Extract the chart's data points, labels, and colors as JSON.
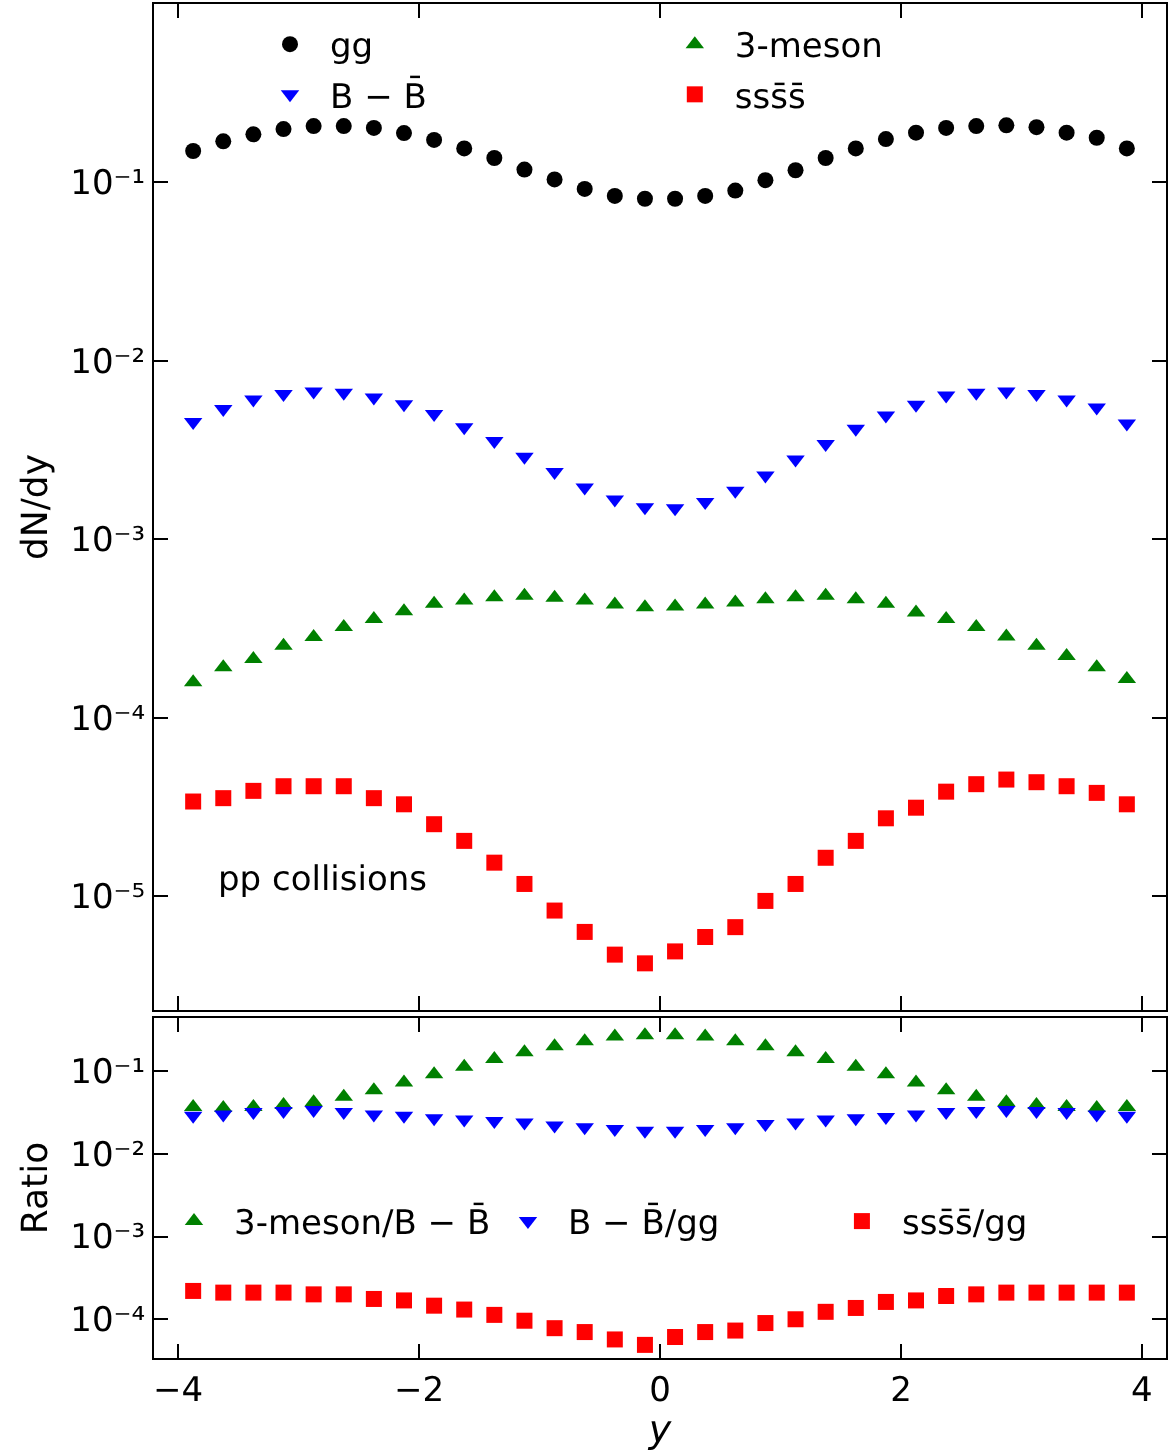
{
  "chart_data": [
    {
      "type": "scatter",
      "ylabel": "dN/dy",
      "log": true,
      "grid": false,
      "legend": "top",
      "tick_labels": "y",
      "x": [
        -3.875,
        -3.625,
        -3.375,
        -3.125,
        -2.875,
        -2.625,
        -2.375,
        -2.125,
        -1.875,
        -1.625,
        -1.375,
        -1.125,
        -0.875,
        -0.625,
        -0.375,
        -0.125,
        0.125,
        0.375,
        0.625,
        0.875,
        1.125,
        1.375,
        1.625,
        1.875,
        2.125,
        2.375,
        2.625,
        2.875,
        3.125,
        3.375,
        3.625,
        3.875
      ],
      "xlim": [
        -4.2,
        4.2
      ],
      "xticks": [
        -4,
        -2,
        0,
        2,
        4
      ],
      "ylim": [
        2.3e-06,
        1.0
      ],
      "yticks": [
        {
          "value": 1e-05,
          "label": "10⁻⁵"
        },
        {
          "value": 0.0001,
          "label": "10⁻⁴"
        },
        {
          "value": 0.001,
          "label": "10⁻³"
        },
        {
          "value": 0.01,
          "label": "10⁻²"
        },
        {
          "value": 0.1,
          "label": "10⁻¹"
        }
      ],
      "annotations": [
        "pp collisions"
      ],
      "series": [
        {
          "name": "gg",
          "color": "#000000",
          "marker": "circle",
          "values": [
            0.15,
            0.17,
            0.186,
            0.199,
            0.207,
            0.207,
            0.202,
            0.189,
            0.173,
            0.155,
            0.137,
            0.118,
            0.104,
            0.092,
            0.084,
            0.081,
            0.081,
            0.084,
            0.09,
            0.103,
            0.117,
            0.137,
            0.155,
            0.175,
            0.19,
            0.202,
            0.207,
            0.209,
            0.204,
            0.19,
            0.178,
            0.155
          ]
        },
        {
          "name": "3-meson",
          "color": "#008000",
          "marker": "triangle",
          "values": [
            0.000158,
            0.000192,
            0.000213,
            0.000253,
            0.000283,
            0.000322,
            0.000357,
            0.000395,
            0.000435,
            0.000454,
            0.000473,
            0.000482,
            0.00047,
            0.000454,
            0.000431,
            0.000416,
            0.00042,
            0.000431,
            0.000442,
            0.000461,
            0.000473,
            0.000482,
            0.000461,
            0.000435,
            0.000389,
            0.000357,
            0.000322,
            0.000285,
            0.000253,
            0.000222,
            0.000192,
            0.000165
          ]
        },
        {
          "name": "B − B̄",
          "color": "#0000ff",
          "marker": "triangle-down",
          "values": [
            0.00454,
            0.00538,
            0.00608,
            0.00651,
            0.00673,
            0.00663,
            0.00624,
            0.00572,
            0.00503,
            0.00424,
            0.00356,
            0.0029,
            0.00238,
            0.00195,
            0.00167,
            0.00151,
            0.00149,
            0.00162,
            0.00187,
            0.00228,
            0.0028,
            0.00342,
            0.00416,
            0.00494,
            0.00567,
            0.0064,
            0.00663,
            0.00673,
            0.00651,
            0.00608,
            0.00548,
            0.00446
          ]
        },
        {
          "name": "sss̄s̄",
          "color": "#ff0000",
          "marker": "square",
          "values": [
            3.39e-05,
            3.54e-05,
            3.89e-05,
            4.13e-05,
            4.13e-05,
            4.13e-05,
            3.54e-05,
            3.27e-05,
            2.53e-05,
            2.04e-05,
            1.54e-05,
            1.17e-05,
            8.3e-06,
            6.3e-06,
            4.7e-06,
            4.2e-06,
            4.9e-06,
            5.9e-06,
            6.7e-06,
            9.4e-06,
            1.17e-05,
            1.64e-05,
            2.04e-05,
            2.73e-05,
            3.13e-05,
            3.85e-05,
            4.24e-05,
            4.5e-05,
            4.35e-05,
            4.13e-05,
            3.79e-05,
            3.27e-05
          ]
        }
      ]
    },
    {
      "type": "scatter",
      "xlabel": "y",
      "ylabel": "Ratio",
      "log": true,
      "grid": false,
      "legend": "center",
      "x": [
        -3.875,
        -3.625,
        -3.375,
        -3.125,
        -2.875,
        -2.625,
        -2.375,
        -2.125,
        -1.875,
        -1.625,
        -1.375,
        -1.125,
        -0.875,
        -0.625,
        -0.375,
        -0.125,
        0.125,
        0.375,
        0.625,
        0.875,
        1.125,
        1.375,
        1.625,
        1.875,
        2.125,
        2.375,
        2.625,
        2.875,
        3.125,
        3.375,
        3.625,
        3.875
      ],
      "xlim": [
        -4.2,
        4.2
      ],
      "xticks": [
        {
          "value": -4,
          "label": "−4"
        },
        {
          "value": -2,
          "label": "−2"
        },
        0,
        2,
        4
      ],
      "ylim": [
        3.4e-05,
        0.44
      ],
      "yticks": [
        {
          "value": 0.0001,
          "label": "10⁻⁴"
        },
        {
          "value": 0.001,
          "label": "10⁻³"
        },
        {
          "value": 0.01,
          "label": "10⁻²"
        },
        {
          "value": 0.1,
          "label": "10⁻¹"
        }
      ],
      "series": [
        {
          "name": "3-meson/B − B̄",
          "color": "#008000",
          "marker": "triangle",
          "values": [
            0.037,
            0.036,
            0.037,
            0.039,
            0.042,
            0.049,
            0.059,
            0.073,
            0.092,
            0.113,
            0.14,
            0.169,
            0.2,
            0.231,
            0.262,
            0.273,
            0.273,
            0.262,
            0.231,
            0.2,
            0.169,
            0.14,
            0.113,
            0.092,
            0.073,
            0.059,
            0.049,
            0.042,
            0.039,
            0.037,
            0.036,
            0.037
          ]
        },
        {
          "name": "B − B̄/gg",
          "color": "#0000ff",
          "marker": "triangle-down",
          "values": [
            0.029,
            0.03,
            0.032,
            0.033,
            0.034,
            0.032,
            0.03,
            0.029,
            0.027,
            0.026,
            0.025,
            0.024,
            0.022,
            0.021,
            0.02,
            0.019,
            0.019,
            0.02,
            0.021,
            0.023,
            0.024,
            0.026,
            0.027,
            0.028,
            0.03,
            0.032,
            0.033,
            0.034,
            0.033,
            0.032,
            0.03,
            0.029
          ]
        },
        {
          "name": "sss̄s̄/gg",
          "color": "#ff0000",
          "marker": "square",
          "values": [
            0.00022,
            0.00021,
            0.00021,
            0.00021,
            0.0002,
            0.0002,
            0.000176,
            0.000169,
            0.000146,
            0.000131,
            0.000113,
            9.6e-05,
            7.8e-05,
            7e-05,
            5.7e-05,
            4.9e-05,
            6.1e-05,
            7e-05,
            7.3e-05,
            9e-05,
            0.0001,
            0.000123,
            0.000137,
            0.000162,
            0.000169,
            0.000191,
            0.0002,
            0.00021,
            0.00021,
            0.00021,
            0.00021,
            0.00021
          ]
        }
      ]
    }
  ]
}
